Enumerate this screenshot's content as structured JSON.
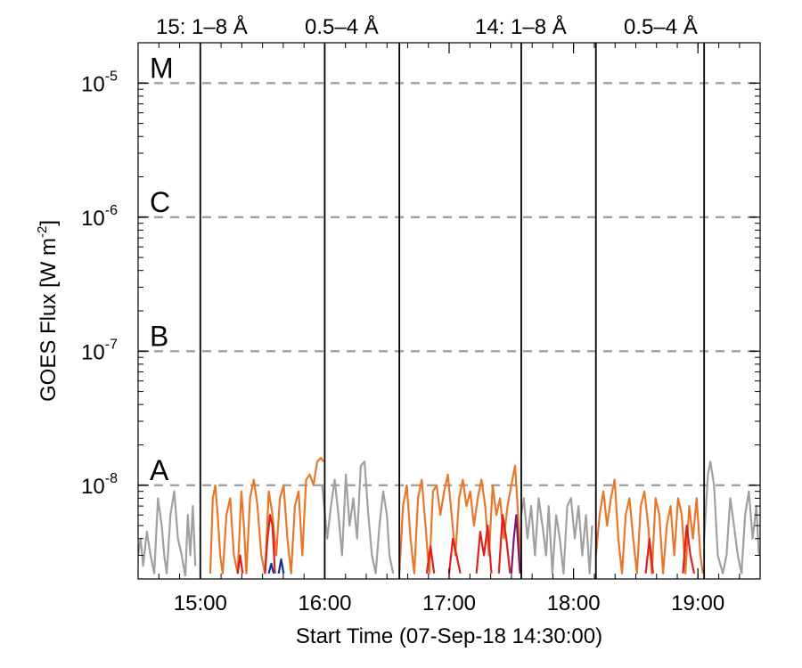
{
  "chart_data": {
    "type": "line",
    "title": "",
    "xlabel": "Start Time (07-Sep-18 14:30:00)",
    "ylabel": "GOES Flux [W m",
    "ylabel_sup": "-2",
    "ylabel_end": "]",
    "ylim": [
      2e-09,
      2e-05
    ],
    "yscale": "log",
    "xlim_minutes": [
      14.5,
      19.5
    ],
    "x_tick_labels": [
      "15:00",
      "16:00",
      "17:00",
      "18:00",
      "19:00"
    ],
    "x_ticks_hours": [
      15,
      16,
      17,
      18,
      19
    ],
    "y_tick_labels": [
      {
        "base": "10",
        "exp": "-5",
        "value": 1e-05
      },
      {
        "base": "10",
        "exp": "-6",
        "value": 1e-06
      },
      {
        "base": "10",
        "exp": "-7",
        "value": 1e-07
      },
      {
        "base": "10",
        "exp": "-8",
        "value": 1e-08
      }
    ],
    "flare_classes": [
      {
        "label": "M",
        "level": 1e-05
      },
      {
        "label": "C",
        "level": 1e-06
      },
      {
        "label": "B",
        "level": 1e-07
      },
      {
        "label": "A",
        "level": 1e-08
      }
    ],
    "legend": [
      {
        "text": "15: 1–8 Å",
        "color": "#e0201c"
      },
      {
        "text": "0.5–4 Å",
        "color": "#12308f"
      },
      {
        "text": "14: 1–8 Å",
        "color": "#e8772a"
      },
      {
        "text": "0.5–4 Å",
        "color": "#7a1a6e"
      }
    ],
    "vertical_lines_hours": [
      15.0,
      16.0,
      16.6,
      17.58,
      18.18,
      19.05
    ],
    "grid": false,
    "colors": {
      "gray": "#a0a0a0",
      "orange": "#e8772a",
      "red": "#e0201c",
      "blue": "#12308f",
      "purple": "#7a1a6e",
      "dashed": "#a0a0a0"
    },
    "series": [
      {
        "color_key": "gray",
        "segments": [
          [
            [
              14.5,
              3e-09
            ],
            [
              14.52,
              4e-09
            ],
            [
              14.54,
              2.5e-09
            ],
            [
              14.57,
              4.5e-09
            ],
            [
              14.6,
              3e-09
            ],
            [
              14.63,
              2.2e-09
            ],
            [
              14.66,
              8e-09
            ],
            [
              14.69,
              5e-09
            ],
            [
              14.71,
              3e-09
            ],
            [
              14.73,
              2.2e-09
            ],
            [
              14.76,
              6e-09
            ],
            [
              14.79,
              9e-09
            ],
            [
              14.82,
              4e-09
            ],
            [
              14.85,
              3e-09
            ],
            [
              14.88,
              2.1e-09
            ]
          ],
          [
            [
              14.88,
              2.1e-09
            ],
            [
              14.9,
              6e-09
            ],
            [
              14.92,
              3e-09
            ],
            [
              14.94,
              7e-09
            ],
            [
              14.96,
              2.5e-09
            ]
          ],
          [
            [
              15.98,
              1e-08
            ],
            [
              16.02,
              4e-09
            ],
            [
              16.05,
              7e-09
            ],
            [
              16.08,
              1.1e-08
            ],
            [
              16.11,
              6e-09
            ],
            [
              16.14,
              3e-09
            ],
            [
              16.17,
              1.2e-08
            ],
            [
              16.2,
              5e-09
            ],
            [
              16.23,
              8e-09
            ],
            [
              16.26,
              4e-09
            ],
            [
              16.29,
              1.4e-08
            ],
            [
              16.32,
              1.5e-08
            ],
            [
              16.35,
              6e-09
            ],
            [
              16.38,
              3e-09
            ],
            [
              16.41,
              2.2e-09
            ],
            [
              16.44,
              5e-09
            ],
            [
              16.47,
              9e-09
            ],
            [
              16.5,
              6e-09
            ],
            [
              16.52,
              3e-09
            ],
            [
              16.55,
              2.2e-09
            ]
          ],
          [
            [
              17.58,
              6e-09
            ],
            [
              17.6,
              8e-09
            ],
            [
              17.63,
              4e-09
            ],
            [
              17.66,
              7e-09
            ],
            [
              17.69,
              3e-09
            ],
            [
              17.72,
              8e-09
            ],
            [
              17.75,
              5e-09
            ],
            [
              17.78,
              3e-09
            ],
            [
              17.8,
              7e-09
            ],
            [
              17.83,
              2.2e-09
            ],
            [
              17.86,
              6e-09
            ],
            [
              17.89,
              4e-09
            ],
            [
              17.92,
              2.2e-09
            ],
            [
              17.95,
              7e-09
            ],
            [
              17.98,
              8e-09
            ],
            [
              18.01,
              4e-09
            ],
            [
              18.04,
              7e-09
            ],
            [
              18.07,
              3e-09
            ],
            [
              18.1,
              6e-09
            ],
            [
              18.13,
              2.2e-09
            ],
            [
              18.15,
              5e-09
            ]
          ],
          [
            [
              19.05,
              4e-09
            ],
            [
              19.08,
              1.2e-08
            ],
            [
              19.1,
              1.5e-08
            ],
            [
              19.13,
              1e-08
            ],
            [
              19.16,
              3e-09
            ],
            [
              19.2,
              2.2e-09
            ],
            [
              19.23,
              3e-09
            ],
            [
              19.26,
              8e-09
            ],
            [
              19.29,
              5e-09
            ],
            [
              19.32,
              3e-09
            ],
            [
              19.35,
              2.2e-09
            ],
            [
              19.38,
              6e-09
            ],
            [
              19.41,
              9e-09
            ],
            [
              19.44,
              4e-09
            ],
            [
              19.47,
              7e-09
            ],
            [
              19.49,
              3e-09
            ]
          ]
        ]
      },
      {
        "color_key": "orange",
        "segments": [
          [
            [
              15.08,
              2.2e-09
            ],
            [
              15.1,
              8e-09
            ],
            [
              15.12,
              1e-08
            ],
            [
              15.14,
              6e-09
            ],
            [
              15.16,
              3e-09
            ],
            [
              15.18,
              2.2e-09
            ],
            [
              15.21,
              6e-09
            ],
            [
              15.24,
              8e-09
            ],
            [
              15.27,
              3e-09
            ],
            [
              15.3,
              2.2e-09
            ],
            [
              15.33,
              9e-09
            ],
            [
              15.35,
              5e-09
            ],
            [
              15.37,
              2.2e-09
            ],
            [
              15.4,
              8e-09
            ],
            [
              15.43,
              1.1e-08
            ],
            [
              15.46,
              7e-09
            ],
            [
              15.49,
              3e-09
            ],
            [
              15.52,
              2.2e-09
            ],
            [
              15.55,
              9e-09
            ],
            [
              15.58,
              6e-09
            ],
            [
              15.61,
              3e-09
            ],
            [
              15.64,
              8e-09
            ],
            [
              15.67,
              1e-08
            ],
            [
              15.7,
              4e-09
            ],
            [
              15.73,
              2.2e-09
            ],
            [
              15.76,
              7e-09
            ],
            [
              15.79,
              9e-09
            ],
            [
              15.82,
              3e-09
            ],
            [
              15.85,
              1.1e-08
            ],
            [
              15.88,
              1.2e-08
            ],
            [
              15.91,
              1e-08
            ],
            [
              15.94,
              1.5e-08
            ],
            [
              15.97,
              1.6e-08
            ],
            [
              15.99,
              1.5e-08
            ]
          ],
          [
            [
              16.6,
              2.2e-09
            ],
            [
              16.63,
              7e-09
            ],
            [
              16.66,
              1e-08
            ],
            [
              16.69,
              4e-09
            ],
            [
              16.72,
              2.2e-09
            ],
            [
              16.75,
              8e-09
            ],
            [
              16.78,
              1.1e-08
            ],
            [
              16.81,
              5e-09
            ],
            [
              16.84,
              2.2e-09
            ],
            [
              16.87,
              9e-09
            ],
            [
              16.9,
              1e-08
            ],
            [
              16.93,
              6e-09
            ],
            [
              16.96,
              9e-09
            ],
            [
              16.99,
              1.2e-08
            ],
            [
              17.02,
              6e-09
            ],
            [
              17.05,
              3e-09
            ],
            [
              17.08,
              8e-09
            ],
            [
              17.11,
              1.1e-08
            ],
            [
              17.14,
              7e-09
            ],
            [
              17.17,
              9e-09
            ],
            [
              17.2,
              5e-09
            ],
            [
              17.23,
              8e-09
            ],
            [
              17.26,
              1.1e-08
            ],
            [
              17.29,
              7e-09
            ],
            [
              17.32,
              3e-09
            ],
            [
              17.35,
              1e-08
            ],
            [
              17.38,
              6e-09
            ],
            [
              17.41,
              8e-09
            ],
            [
              17.44,
              4e-09
            ],
            [
              17.47,
              7e-09
            ],
            [
              17.5,
              1e-08
            ],
            [
              17.53,
              1.4e-08
            ],
            [
              17.56,
              5e-09
            ],
            [
              17.58,
              2.2e-09
            ]
          ],
          [
            [
              18.18,
              3e-09
            ],
            [
              18.21,
              6e-09
            ],
            [
              18.24,
              9e-09
            ],
            [
              18.27,
              5e-09
            ],
            [
              18.3,
              8e-09
            ],
            [
              18.33,
              1.1e-08
            ],
            [
              18.36,
              4e-09
            ],
            [
              18.39,
              2.2e-09
            ],
            [
              18.42,
              6e-09
            ],
            [
              18.45,
              8e-09
            ],
            [
              18.48,
              4e-09
            ],
            [
              18.51,
              2.2e-09
            ],
            [
              18.54,
              7e-09
            ],
            [
              18.57,
              9e-09
            ],
            [
              18.6,
              5e-09
            ],
            [
              18.63,
              2.2e-09
            ],
            [
              18.66,
              8e-09
            ],
            [
              18.69,
              6e-09
            ],
            [
              18.72,
              2.2e-09
            ],
            [
              18.75,
              5e-09
            ],
            [
              18.78,
              7e-09
            ],
            [
              18.81,
              3e-09
            ],
            [
              18.84,
              8e-09
            ],
            [
              18.87,
              6e-09
            ],
            [
              18.9,
              2.2e-09
            ],
            [
              18.93,
              7e-09
            ],
            [
              18.96,
              4e-09
            ],
            [
              18.99,
              8e-09
            ],
            [
              19.02,
              3e-09
            ],
            [
              19.04,
              2.2e-09
            ]
          ]
        ]
      },
      {
        "color_key": "red",
        "segments": [
          [
            [
              15.3,
              2.2e-09
            ],
            [
              15.32,
              3e-09
            ],
            [
              15.34,
              2.2e-09
            ]
          ],
          [
            [
              15.52,
              2.2e-09
            ],
            [
              15.54,
              4e-09
            ],
            [
              15.56,
              6e-09
            ],
            [
              15.58,
              5e-09
            ],
            [
              15.6,
              2.2e-09
            ]
          ],
          [
            [
              16.82,
              2.2e-09
            ],
            [
              16.85,
              3.5e-09
            ],
            [
              16.88,
              2.2e-09
            ]
          ],
          [
            [
              17.0,
              2.2e-09
            ],
            [
              17.03,
              4e-09
            ],
            [
              17.06,
              3e-09
            ],
            [
              17.09,
              2.2e-09
            ]
          ],
          [
            [
              17.22,
              2.2e-09
            ],
            [
              17.25,
              4.5e-09
            ],
            [
              17.28,
              3e-09
            ],
            [
              17.31,
              5e-09
            ],
            [
              17.34,
              2.2e-09
            ]
          ],
          [
            [
              17.4,
              2.2e-09
            ],
            [
              17.43,
              6e-09
            ],
            [
              17.46,
              4e-09
            ],
            [
              17.49,
              2.2e-09
            ]
          ],
          [
            [
              18.58,
              2.2e-09
            ],
            [
              18.61,
              4e-09
            ],
            [
              18.64,
              2.2e-09
            ]
          ],
          [
            [
              18.88,
              2.2e-09
            ],
            [
              18.91,
              5e-09
            ],
            [
              18.94,
              3e-09
            ],
            [
              18.97,
              2.2e-09
            ]
          ]
        ]
      },
      {
        "color_key": "blue",
        "segments": [
          [
            [
              15.55,
              2.2e-09
            ],
            [
              15.57,
              2.6e-09
            ],
            [
              15.59,
              2.2e-09
            ]
          ],
          [
            [
              15.63,
              2.2e-09
            ],
            [
              15.65,
              2.8e-09
            ],
            [
              15.67,
              2.2e-09
            ]
          ]
        ]
      },
      {
        "color_key": "purple",
        "segments": [
          [
            [
              17.5,
              2.2e-09
            ],
            [
              17.52,
              4e-09
            ],
            [
              17.54,
              6e-09
            ],
            [
              17.56,
              3e-09
            ],
            [
              17.57,
              2.2e-09
            ]
          ]
        ]
      }
    ]
  }
}
